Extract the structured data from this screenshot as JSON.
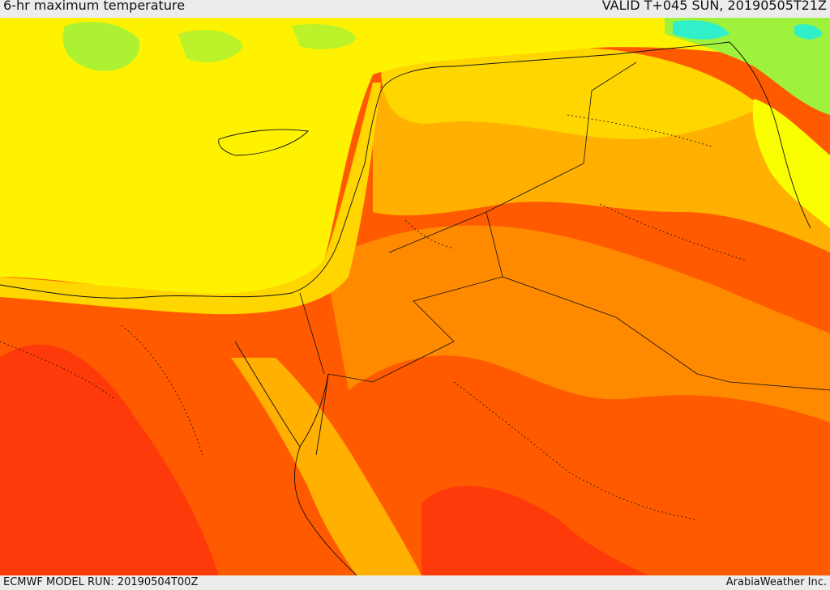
{
  "header": {
    "title": "6-hr maximum temperature",
    "valid_time": "VALID T+045 SUN, 20190505T21Z"
  },
  "footer": {
    "model_run": "ECMWF MODEL RUN: 20190504T00Z",
    "credit": "ArabiaWeather Inc."
  },
  "map": {
    "colors": {
      "cool_green": "#9ef23c",
      "cyan": "#2ff0c8",
      "light_yellow": "#f9ff00",
      "yellow": "#fff200",
      "gold": "#ffd600",
      "light_orange": "#ffb000",
      "orange": "#ff8a00",
      "deep_orange": "#ff5a00",
      "red_orange": "#ff3a0a"
    }
  }
}
